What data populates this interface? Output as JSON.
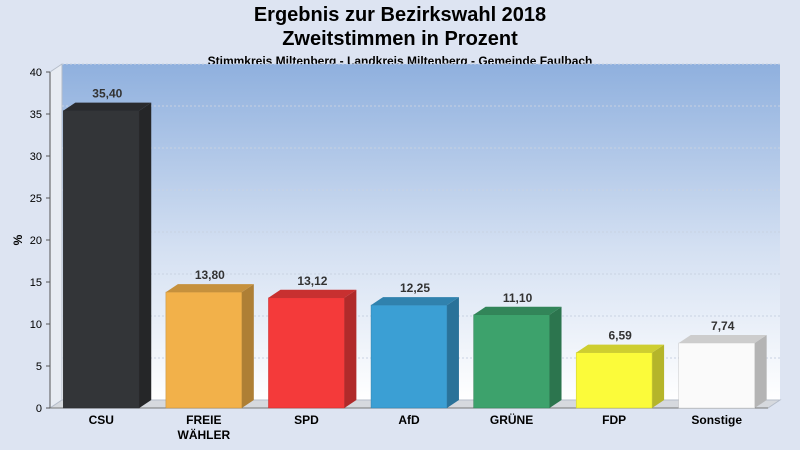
{
  "title": "Ergebnis zur Bezirkswahl 2018",
  "title2": "Zweitstimmen in Prozent",
  "subtitle": "Stimmkreis Miltenberg - Landkreis Miltenberg - Gemeinde Faulbach",
  "chart_data": {
    "type": "bar",
    "ylabel": "%",
    "ylim": [
      0,
      40
    ],
    "yticks": [
      "0",
      "5",
      "10",
      "15",
      "20",
      "25",
      "30",
      "35",
      "40"
    ],
    "grid": true,
    "categories": [
      [
        "CSU"
      ],
      [
        "FREIE",
        "WÄHLER"
      ],
      [
        "SPD"
      ],
      [
        "AfD"
      ],
      [
        "GRÜNE"
      ],
      [
        "FDP"
      ],
      [
        "Sonstige"
      ]
    ],
    "values": [
      35.4,
      13.8,
      13.12,
      12.25,
      11.1,
      6.59,
      7.74
    ],
    "value_labels": [
      "35,40",
      "13,80",
      "13,12",
      "12,25",
      "11,10",
      "6,59",
      "7,74"
    ],
    "colors": [
      "#333538",
      "#f2b14a",
      "#f43a3a",
      "#3b9fd4",
      "#3da26c",
      "#fbfb3a",
      "#fafafa"
    ]
  }
}
